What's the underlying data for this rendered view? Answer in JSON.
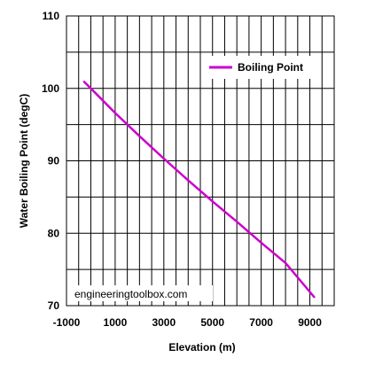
{
  "chart_data": {
    "type": "line",
    "xlabel": "Elevation (m)",
    "ylabel": "Water Boiling Point (degC)",
    "xlim": [
      -1000,
      10000
    ],
    "ylim": [
      70,
      110
    ],
    "x_ticks": [
      -1000,
      1000,
      3000,
      5000,
      7000,
      9000
    ],
    "x_tick_labels": [
      "-1000",
      "1000",
      "3000",
      "5000",
      "7000",
      "9000"
    ],
    "y_ticks": [
      70,
      80,
      90,
      100,
      110
    ],
    "y_tick_labels": [
      "70",
      "80",
      "90",
      "100",
      "110"
    ],
    "grid": true,
    "legend_position": "top-right",
    "annotation": "engineeringtoolbox.com",
    "series": [
      {
        "name": "Boiling Point",
        "color": "#cc00cc",
        "x": [
          -300,
          0,
          1000,
          2000,
          3000,
          4000,
          5000,
          6000,
          7000,
          8000,
          9200
        ],
        "y": [
          101,
          100.0,
          96.6,
          93.4,
          90.3,
          87.3,
          84.4,
          81.6,
          78.7,
          75.9,
          71.1
        ]
      }
    ]
  }
}
